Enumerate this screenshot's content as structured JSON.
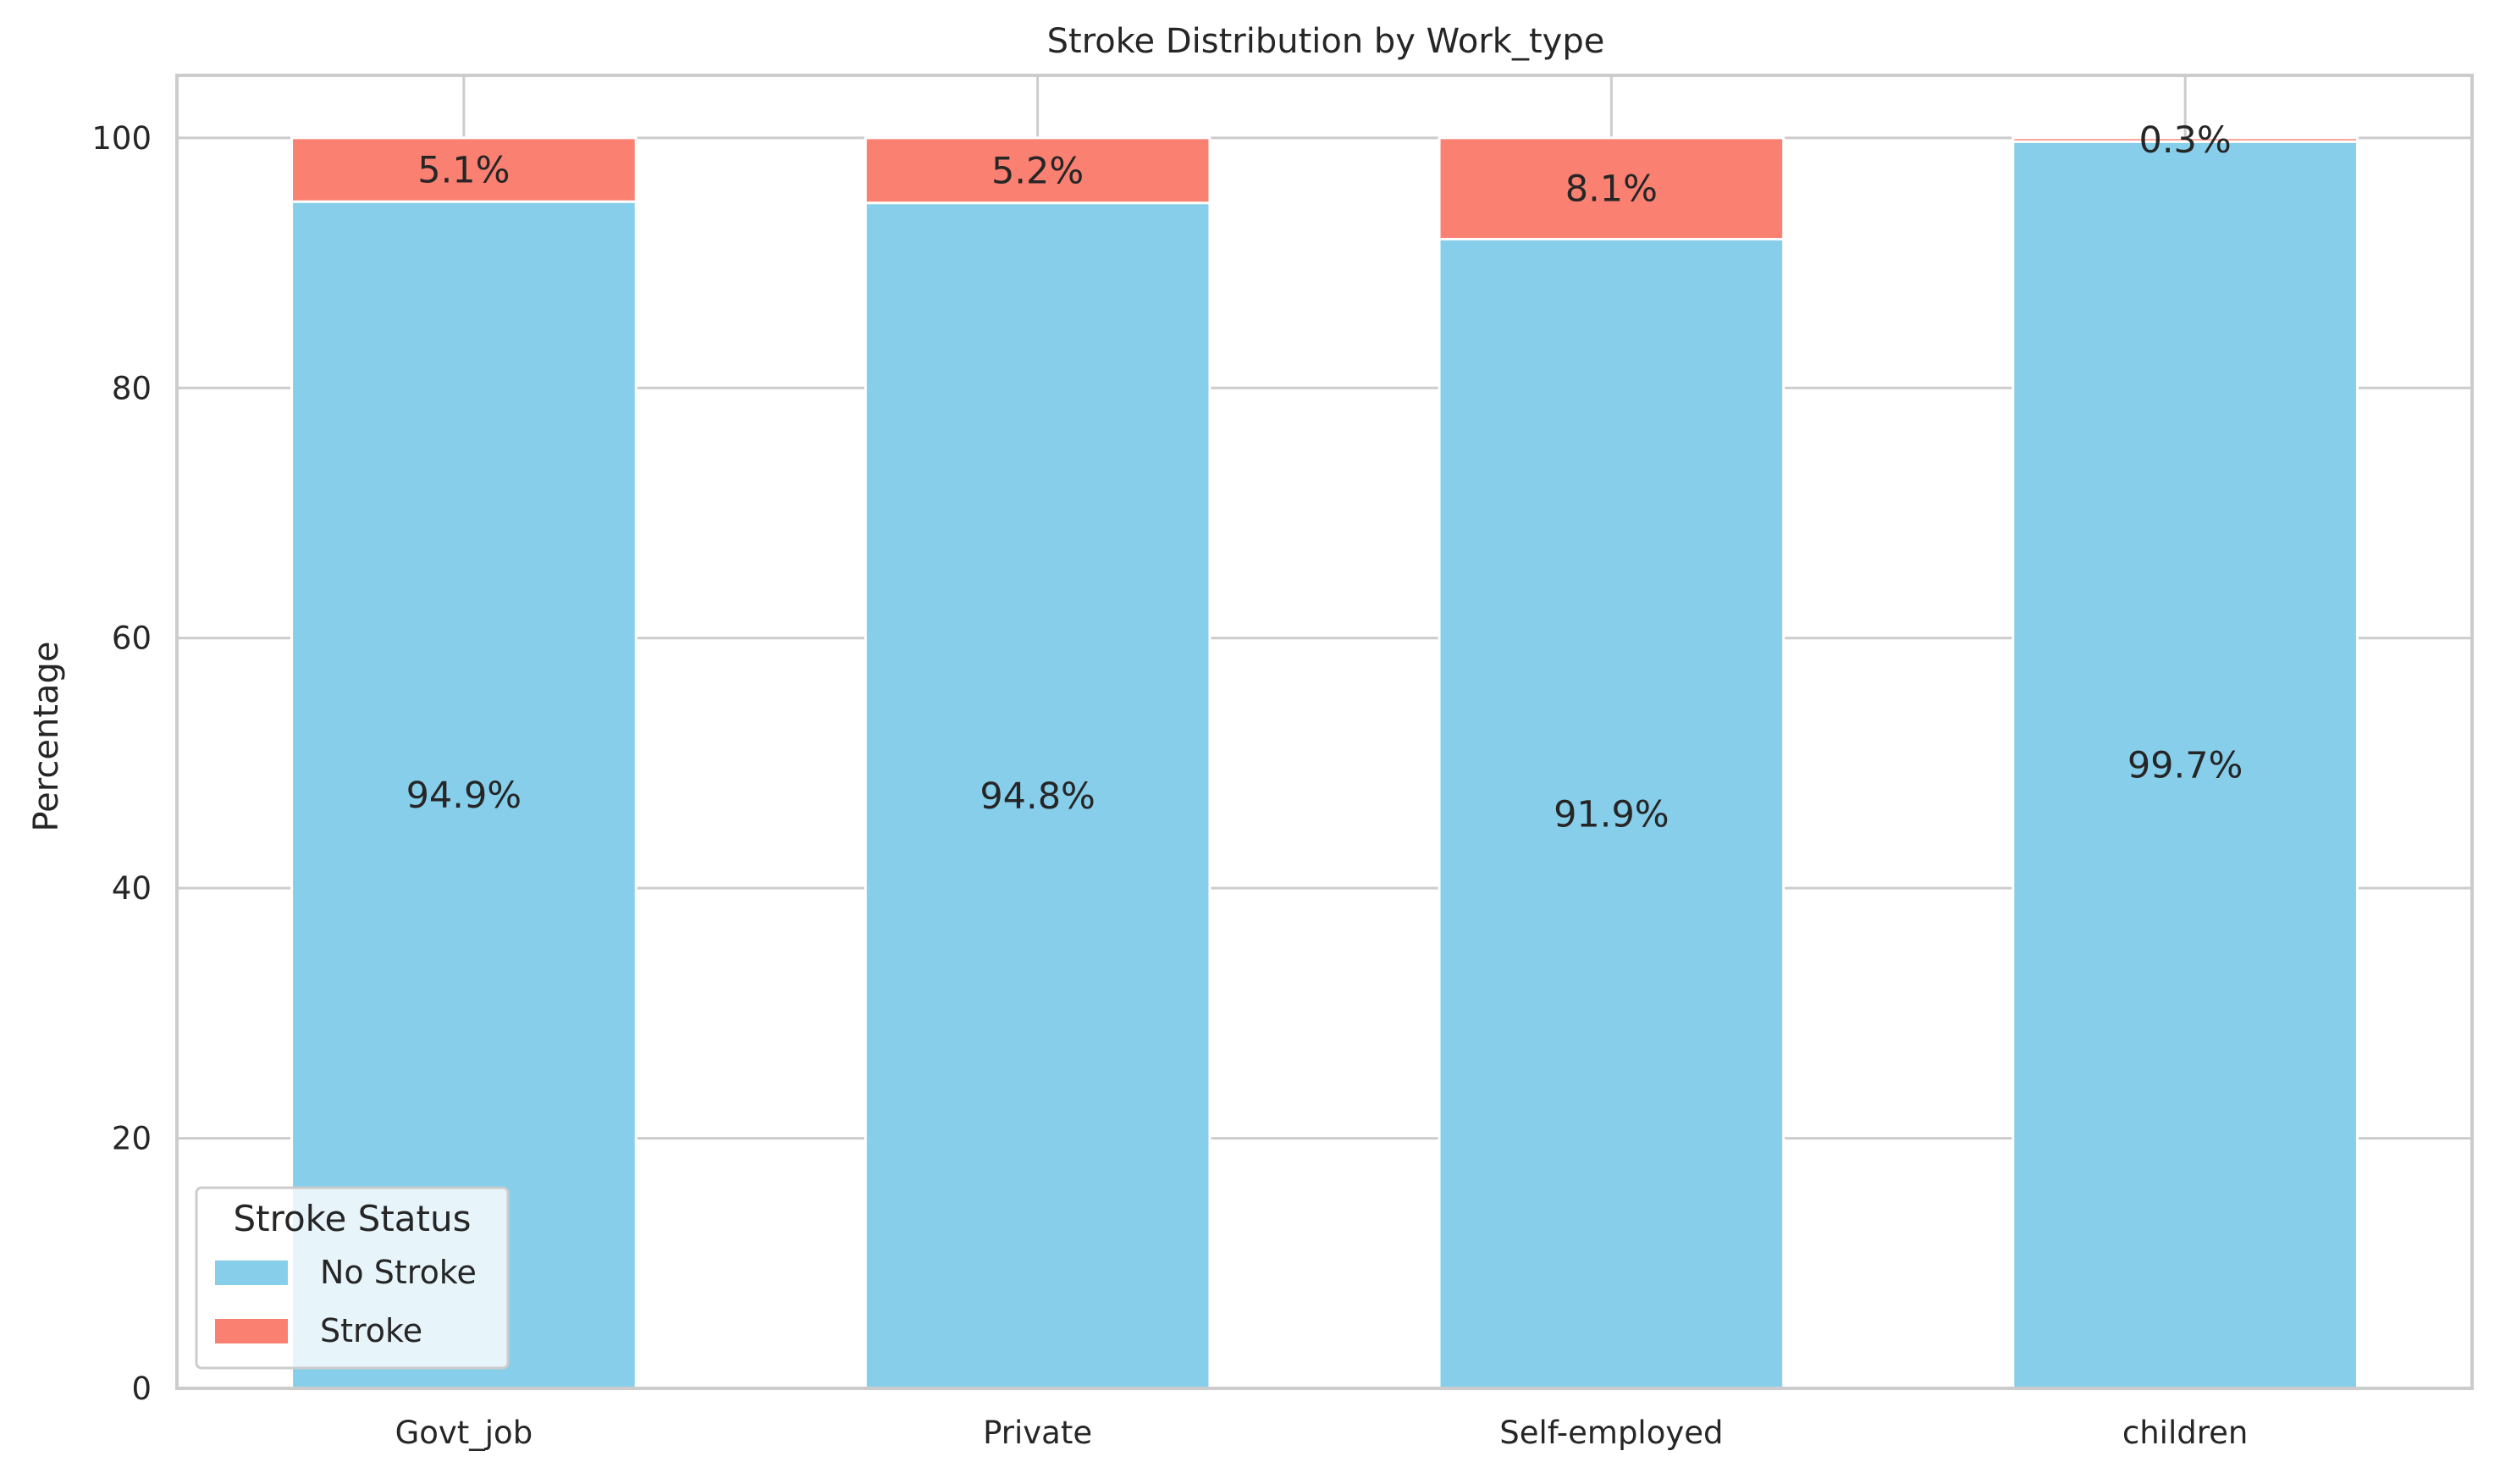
{
  "chart_data": {
    "type": "bar",
    "stacked": true,
    "title": "Stroke Distribution by Work_type",
    "xlabel": "",
    "ylabel": "Percentage",
    "categories": [
      "Govt_job",
      "Private",
      "Self-employed",
      "children"
    ],
    "series": [
      {
        "name": "No Stroke",
        "color": "#87CEEB",
        "values": [
          94.9,
          94.8,
          91.9,
          99.7
        ],
        "labels": [
          "94.9%",
          "94.8%",
          "91.9%",
          "99.7%"
        ]
      },
      {
        "name": "Stroke",
        "color": "#FA8072",
        "values": [
          5.1,
          5.2,
          8.1,
          0.3
        ],
        "labels": [
          "5.1%",
          "5.2%",
          "8.1%",
          "0.3%"
        ]
      }
    ],
    "ylim": [
      0,
      105
    ],
    "yticks": [
      0,
      20,
      40,
      60,
      80,
      100
    ],
    "grid": true,
    "legend": {
      "title": "Stroke Status",
      "position": "lower-left"
    }
  }
}
